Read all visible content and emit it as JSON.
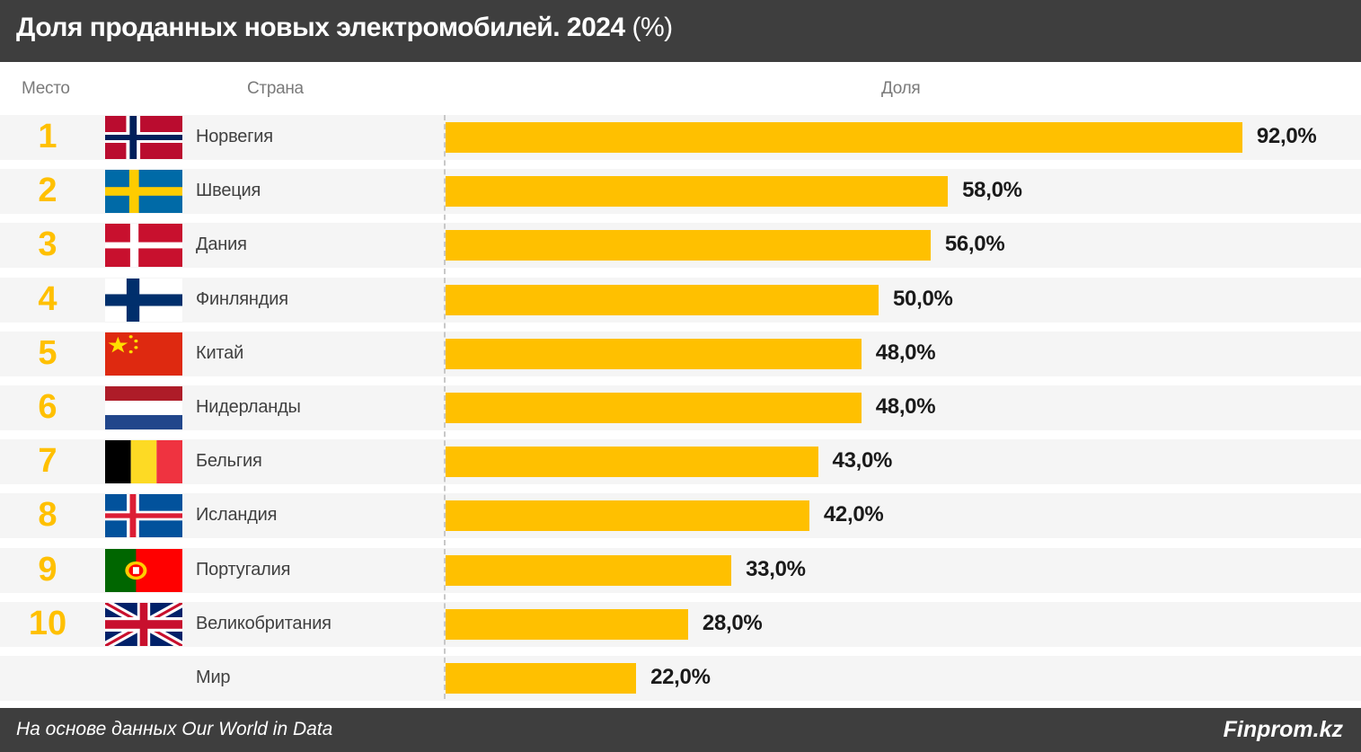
{
  "header": {
    "title": "Доля проданных новых электромобилей. 2024",
    "title_suffix": "(%)"
  },
  "columns": {
    "rank": "Место",
    "country": "Страна",
    "share": "Доля"
  },
  "footer": {
    "source": "На основе данных Our World in Data",
    "brand": "Finprom.kz"
  },
  "colors": {
    "bar": "#ffc000",
    "rank": "#ffc000",
    "header_bg": "#3e3e3e",
    "row_bg": "#f5f5f5"
  },
  "chart_data": {
    "type": "bar",
    "orientation": "horizontal",
    "title": "Доля проданных новых электромобилей. 2024 (%)",
    "xlabel": "Доля",
    "ylabel": "Страна",
    "xlim": [
      0,
      100
    ],
    "grid": false,
    "categories": [
      "Норвегия",
      "Швеция",
      "Дания",
      "Финляндия",
      "Китай",
      "Нидерланды",
      "Бельгия",
      "Исландия",
      "Португалия",
      "Великобритания",
      "Мир"
    ],
    "values": [
      92.0,
      58.0,
      56.0,
      50.0,
      48.0,
      48.0,
      43.0,
      42.0,
      33.0,
      28.0,
      22.0
    ],
    "rows": [
      {
        "rank": "1",
        "country": "Норвегия",
        "flag": "norway-flag",
        "value": 92.0,
        "label": "92,0%"
      },
      {
        "rank": "2",
        "country": "Швеция",
        "flag": "sweden-flag",
        "value": 58.0,
        "label": "58,0%"
      },
      {
        "rank": "3",
        "country": "Дания",
        "flag": "denmark-flag",
        "value": 56.0,
        "label": "56,0%"
      },
      {
        "rank": "4",
        "country": "Финляндия",
        "flag": "finland-flag",
        "value": 50.0,
        "label": "50,0%"
      },
      {
        "rank": "5",
        "country": "Китай",
        "flag": "china-flag",
        "value": 48.0,
        "label": "48,0%"
      },
      {
        "rank": "6",
        "country": "Нидерланды",
        "flag": "netherlands-flag",
        "value": 48.0,
        "label": "48,0%"
      },
      {
        "rank": "7",
        "country": "Бельгия",
        "flag": "belgium-flag",
        "value": 43.0,
        "label": "43,0%"
      },
      {
        "rank": "8",
        "country": "Исландия",
        "flag": "iceland-flag",
        "value": 42.0,
        "label": "42,0%"
      },
      {
        "rank": "9",
        "country": "Португалия",
        "flag": "portugal-flag",
        "value": 33.0,
        "label": "33,0%"
      },
      {
        "rank": "10",
        "country": "Великобритания",
        "flag": "uk-flag",
        "value": 28.0,
        "label": "28,0%"
      },
      {
        "rank": "",
        "country": "Мир",
        "flag": "",
        "value": 22.0,
        "label": "22,0%"
      }
    ]
  }
}
